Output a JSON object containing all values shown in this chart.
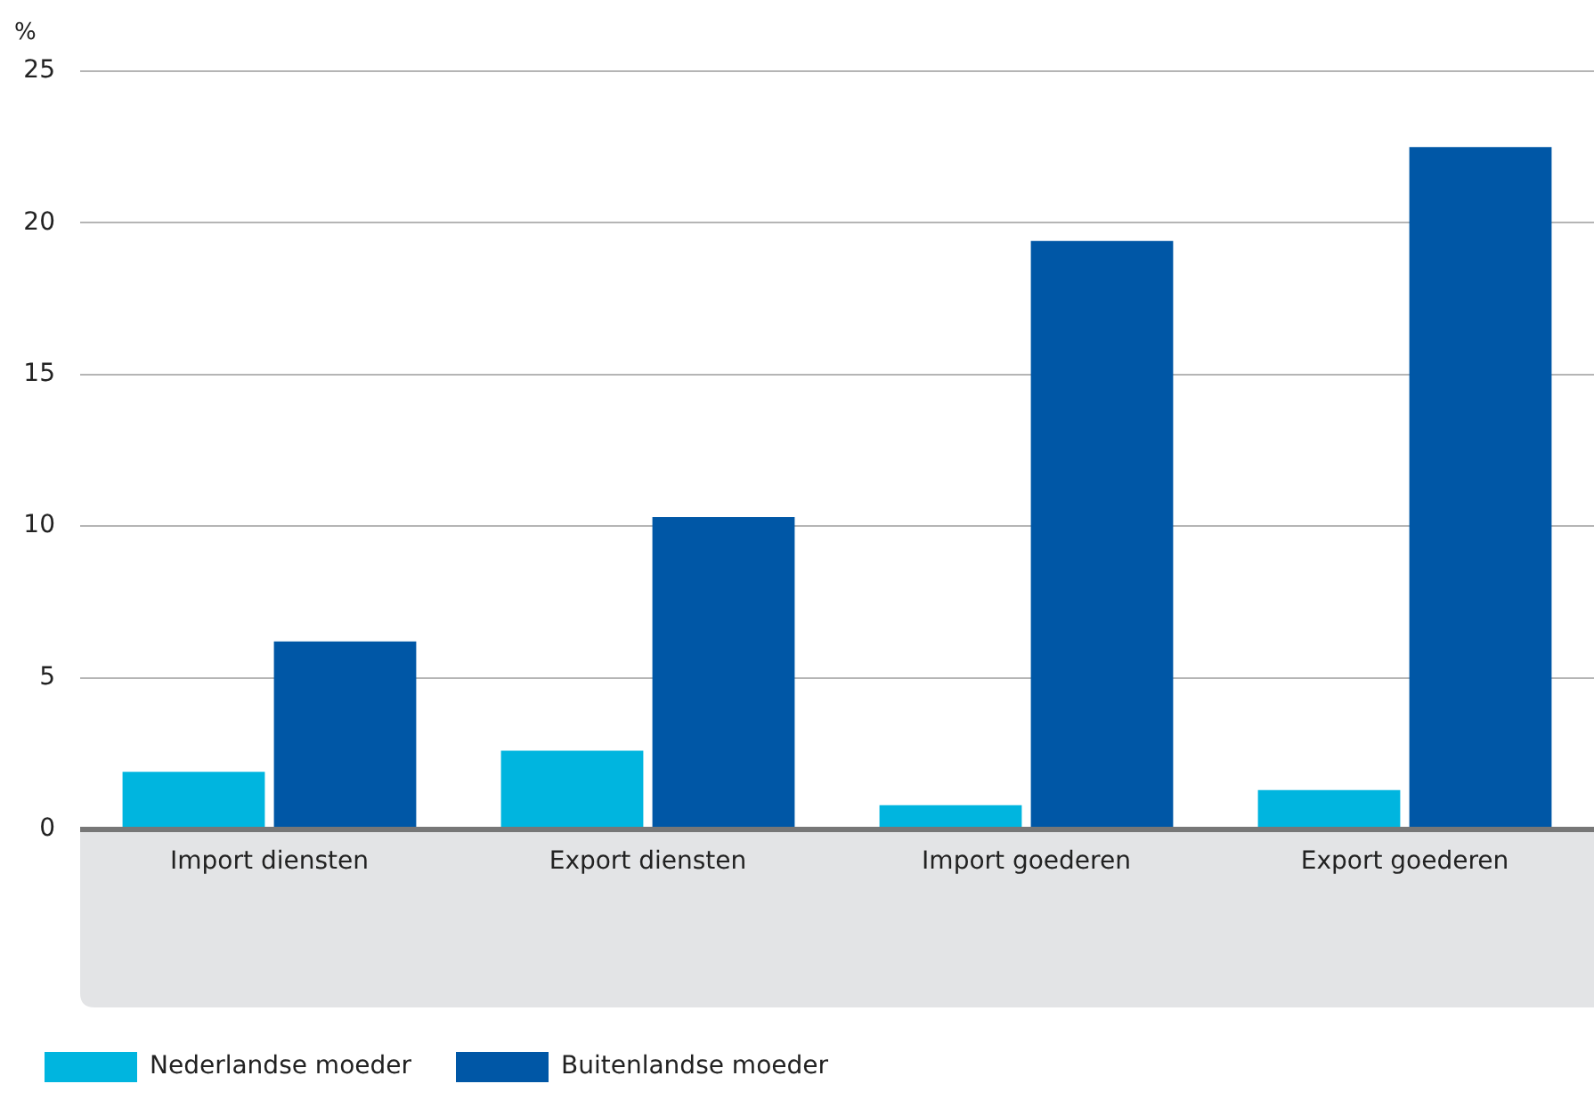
{
  "chart_data": {
    "type": "bar",
    "ylabel": "%",
    "categories": [
      "Import diensten",
      "Export diensten",
      "Import goederen",
      "Export goederen"
    ],
    "series": [
      {
        "name": "Nederlandse moeder",
        "color": "#00b5df",
        "values": [
          1.9,
          2.6,
          0.8,
          1.3
        ]
      },
      {
        "name": "Buitenlandse moeder",
        "color": "#0057a6",
        "values": [
          6.2,
          10.3,
          19.4,
          22.5
        ]
      }
    ],
    "ylim": [
      0,
      25
    ],
    "yticks": [
      0,
      5,
      10,
      15,
      20,
      25
    ],
    "grid": "y",
    "legend": "bottom left"
  }
}
